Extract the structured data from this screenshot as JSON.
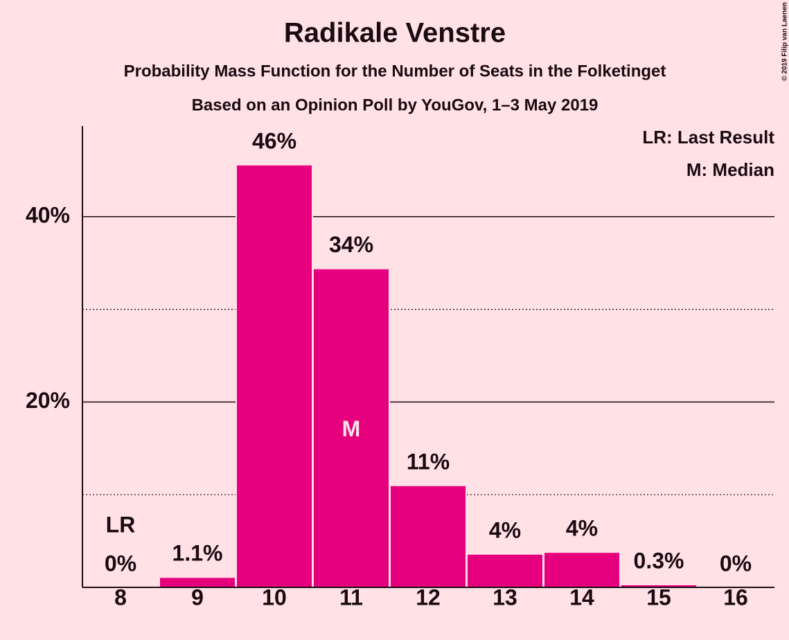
{
  "chart_data": {
    "type": "bar",
    "title": "Radikale Venstre",
    "subtitle": "Probability Mass Function for the Number of Seats in the Folketinget",
    "source": "Based on an Opinion Poll by YouGov, 1–3 May 2019",
    "copyright": "© 2019 Filip van Laenen",
    "x": [
      8,
      9,
      10,
      11,
      12,
      13,
      14,
      15,
      16
    ],
    "values": [
      0,
      1.1,
      45.6,
      34.4,
      11.0,
      3.6,
      3.8,
      0.3,
      0
    ],
    "value_labels": [
      "0%",
      "1.1%",
      "46%",
      "34%",
      "11%",
      "4%",
      "4%",
      "0.3%",
      "0%"
    ],
    "color": "#e6007e",
    "ylim": [
      0,
      50
    ],
    "yticks": [
      {
        "value": 20,
        "label": "20%"
      },
      {
        "value": 40,
        "label": "40%"
      }
    ],
    "minor_yticks": [
      10,
      30
    ],
    "grid": true,
    "last_result": 8,
    "last_result_label": "LR",
    "median": 11,
    "median_label": "M",
    "legend": [
      "LR: Last Result",
      "M: Median"
    ],
    "legend_position": "upper right"
  }
}
